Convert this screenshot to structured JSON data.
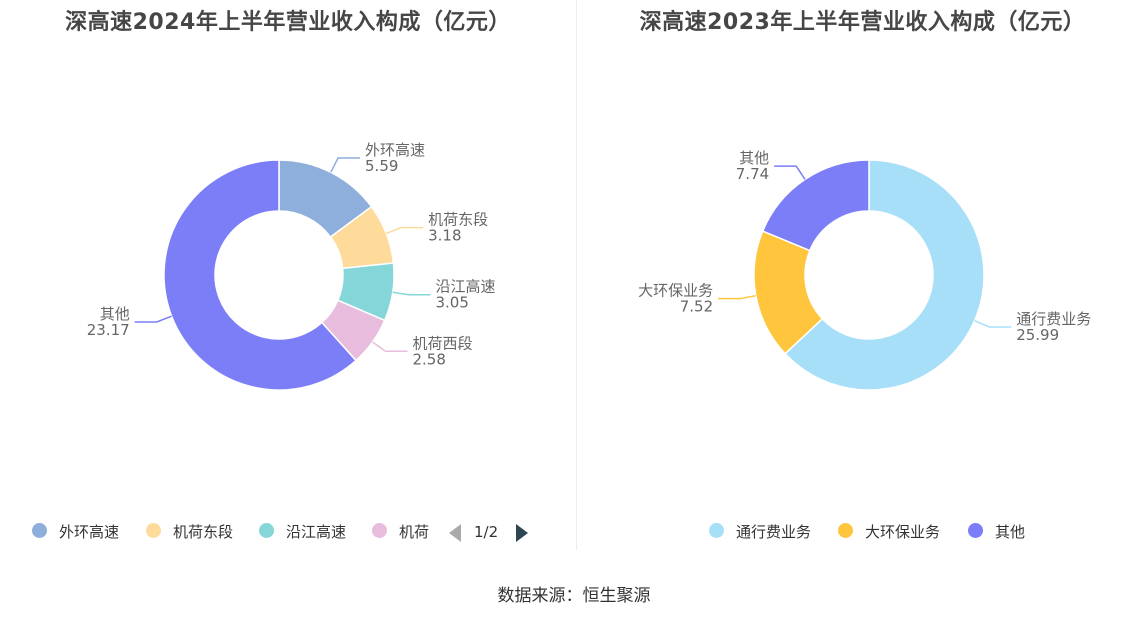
{
  "chart_data": [
    {
      "type": "pie",
      "title": "深高速2024年上半年营业收入构成（亿元）",
      "series": [
        {
          "name": "外环高速",
          "value": 5.59,
          "color": "#8eaedc"
        },
        {
          "name": "机荷东段",
          "value": 3.18,
          "color": "#fedb9b"
        },
        {
          "name": "沿江高速",
          "value": 3.05,
          "color": "#85d6d9"
        },
        {
          "name": "机荷西段",
          "value": 2.58,
          "color": "#e8bcdc"
        },
        {
          "name": "其他",
          "value": 23.17,
          "color": "#7b7ef7"
        }
      ],
      "legend": {
        "position": "bottom",
        "items": [
          "外环高速",
          "机荷东段",
          "沿江高速",
          "机荷"
        ],
        "page": "1/2"
      }
    },
    {
      "type": "pie",
      "title": "深高速2023年上半年营业收入构成（亿元）",
      "series": [
        {
          "name": "通行费业务",
          "value": 25.99,
          "color": "#a7dff9"
        },
        {
          "name": "大环保业务",
          "value": 7.52,
          "color": "#ffc53d"
        },
        {
          "name": "其他",
          "value": 7.74,
          "color": "#7b7ef7"
        }
      ],
      "legend": {
        "position": "bottom",
        "items": [
          "通行费业务",
          "大环保业务",
          "其他"
        ]
      }
    }
  ],
  "source": "数据来源：恒生聚源"
}
